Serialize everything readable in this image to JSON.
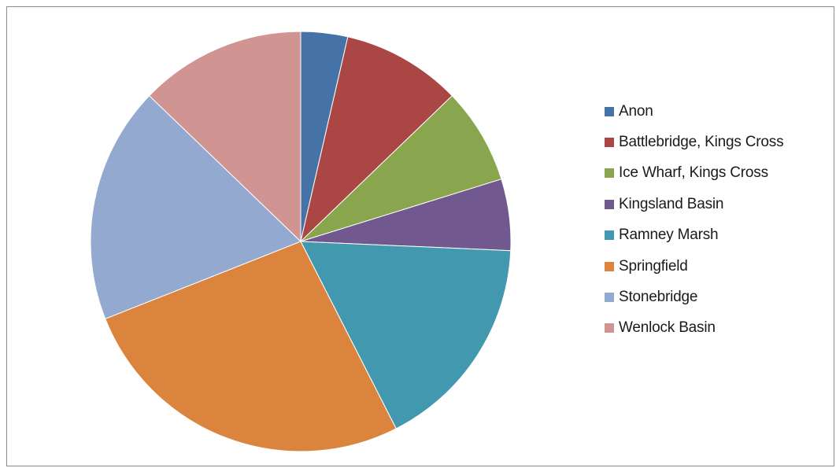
{
  "chart_data": {
    "type": "pie",
    "start_angle_deg": 0,
    "direction": "clockwise",
    "legend_position": "right",
    "slices": [
      {
        "label": "Anon",
        "value": 3.6,
        "color": "#4572a7"
      },
      {
        "label": "Battlebridge, Kings Cross",
        "value": 9.2,
        "color": "#aa4643"
      },
      {
        "label": "Ice Wharf, Kings Cross",
        "value": 7.4,
        "color": "#89a54e"
      },
      {
        "label": "Kingsland Basin",
        "value": 5.5,
        "color": "#71588f"
      },
      {
        "label": "Ramney Marsh",
        "value": 16.8,
        "color": "#4198af"
      },
      {
        "label": "Springfield",
        "value": 26.5,
        "color": "#db843d"
      },
      {
        "label": "Stonebridge",
        "value": 18.2,
        "color": "#93a9cf"
      },
      {
        "label": "Wenlock Basin",
        "value": 12.8,
        "color": "#d09493"
      }
    ]
  }
}
